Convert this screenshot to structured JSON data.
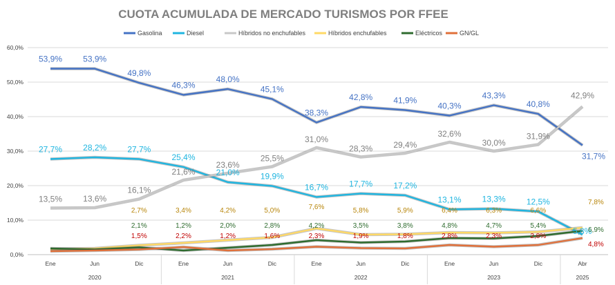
{
  "chart_data": {
    "type": "line",
    "title": "CUOTA ACUMULADA DE MERCADO TURISMOS POR FFEE",
    "xlabel": "",
    "ylabel": "",
    "ylim": [
      0,
      60
    ],
    "yticks": [
      "0,0%",
      "10,0%",
      "20,0%",
      "30,0%",
      "40,0%",
      "50,0%",
      "60,0%"
    ],
    "categories": [
      "Ene",
      "Jun",
      "Dic",
      "Ene",
      "Jun",
      "Dic",
      "Ene",
      "Jun",
      "Dic",
      "Ene",
      "Jun",
      "Dic",
      "Abr"
    ],
    "years": [
      {
        "label": "2020",
        "from": 0,
        "to": 2
      },
      {
        "label": "2021",
        "from": 3,
        "to": 5
      },
      {
        "label": "2022",
        "from": 6,
        "to": 8
      },
      {
        "label": "2023",
        "from": 9,
        "to": 11
      },
      {
        "label": "2025",
        "from": 12,
        "to": 12
      }
    ],
    "grid": true,
    "legend_position": "top",
    "series": [
      {
        "name": "Gasolina",
        "color": "#4472c4",
        "values": [
          53.9,
          53.9,
          49.8,
          46.3,
          48.0,
          45.1,
          38.3,
          42.8,
          41.9,
          40.3,
          43.3,
          40.8,
          31.7
        ],
        "labels": [
          "53,9%",
          "53,9%",
          "49,8%",
          "46,3%",
          "48,0%",
          "45,1%",
          "38,3%",
          "42,8%",
          "41,9%",
          "40,3%",
          "43,3%",
          "40,8%",
          "31,7%"
        ]
      },
      {
        "name": "Diesel",
        "color": "#1fb5e0",
        "values": [
          27.7,
          28.2,
          27.7,
          25.4,
          21.0,
          19.9,
          16.7,
          17.7,
          17.2,
          13.1,
          13.3,
          12.5,
          5.8
        ],
        "labels": [
          "27,7%",
          "28,2%",
          "27,7%",
          "25,4%",
          "21,0%",
          "19,9%",
          "16,7%",
          "17,7%",
          "17,2%",
          "13,1%",
          "13,3%",
          "12,5%",
          "5,8%"
        ]
      },
      {
        "name": "Híbridos no enchufables",
        "color": "#c8c8c8",
        "values": [
          13.5,
          13.6,
          16.1,
          21.6,
          23.6,
          25.5,
          31.0,
          28.3,
          29.4,
          32.6,
          30.0,
          31.9,
          42.9
        ],
        "labels": [
          "13,5%",
          "13,6%",
          "16,1%",
          "21,6%",
          "23,6%",
          "25,5%",
          "31,0%",
          "28,3%",
          "29,4%",
          "32,6%",
          "30,0%",
          "31,9%",
          "42,9%"
        ]
      },
      {
        "name": "Híbridos enchufables",
        "color": "#ffd966",
        "values": [
          1.6,
          1.8,
          2.7,
          3.4,
          4.2,
          5.0,
          7.6,
          5.8,
          5.9,
          6.4,
          6.3,
          6.6,
          7.8
        ],
        "labels": [
          "",
          "",
          "2,7%",
          "3,4%",
          "4,2%",
          "5,0%",
          "7,6%",
          "5,8%",
          "5,9%",
          "6,4%",
          "6,3%",
          "6,6%",
          "7,8%"
        ]
      },
      {
        "name": "Eléctricos",
        "color": "#2e6b2e",
        "values": [
          1.8,
          1.5,
          2.1,
          1.2,
          2.0,
          2.8,
          4.2,
          3.5,
          3.8,
          4.8,
          4.7,
          5.4,
          6.9
        ],
        "labels": [
          "",
          "",
          "2,1%",
          "1,2%",
          "2,0%",
          "2,8%",
          "4,2%",
          "3,5%",
          "3,8%",
          "4,8%",
          "4,7%",
          "5,4%",
          "6,9%"
        ]
      },
      {
        "name": "GN/GL",
        "color": "#e0703a",
        "values": [
          1.0,
          1.2,
          1.5,
          2.2,
          1.2,
          1.6,
          2.3,
          1.9,
          1.8,
          2.8,
          2.3,
          2.8,
          4.8
        ],
        "labels": [
          "",
          "",
          "1,5%",
          "2,2%",
          "1,2%",
          "1,6%",
          "2,3%",
          "1,9%",
          "1,8%",
          "2,8%",
          "2,3%",
          "2,8%",
          "4,8%"
        ]
      }
    ]
  }
}
